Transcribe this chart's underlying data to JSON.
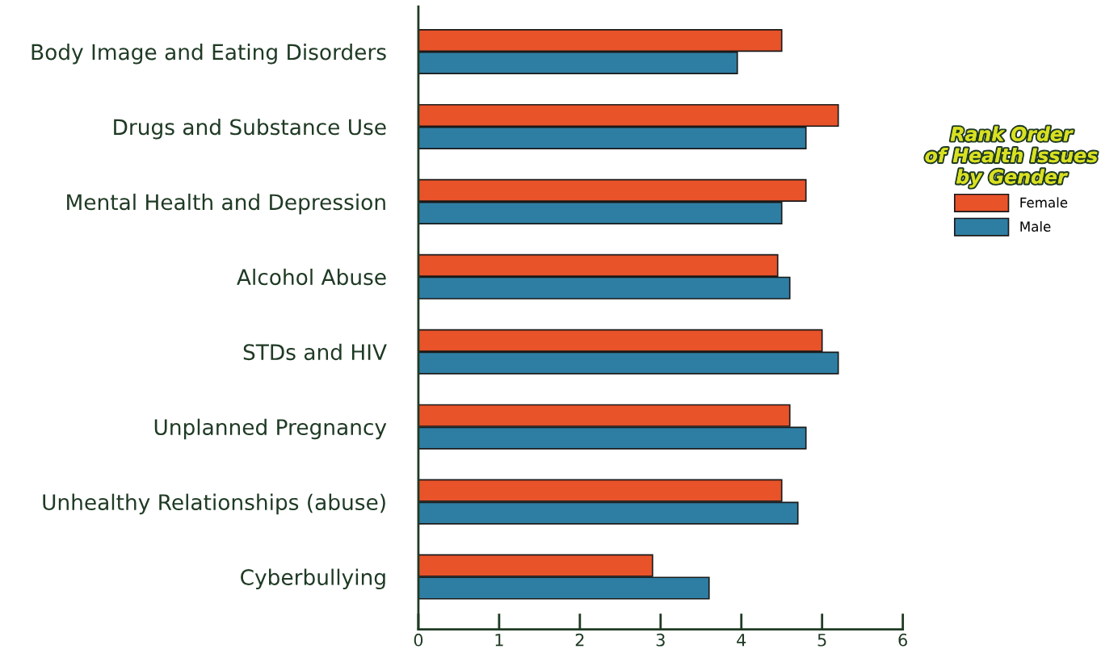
{
  "chart_data": {
    "type": "bar",
    "orientation": "horizontal",
    "categories": [
      "Body Image and Eating Disorders",
      "Drugs and Substance Use",
      "Mental Health and Depression",
      "Alcohol Abuse",
      "STDs and HIV",
      "Unplanned Pregnancy",
      "Unhealthy Relationships (abuse)",
      "Cyberbullying"
    ],
    "series": [
      {
        "name": "Female",
        "color": "#e8532a",
        "values": [
          4.5,
          5.2,
          4.8,
          4.45,
          5.0,
          4.6,
          4.5,
          2.9
        ]
      },
      {
        "name": "Male",
        "color": "#2e7ea3",
        "values": [
          3.95,
          4.8,
          4.5,
          4.6,
          5.2,
          4.8,
          4.7,
          3.6
        ]
      }
    ],
    "xlim": [
      0,
      6
    ],
    "xticks": [
      0,
      1,
      2,
      3,
      4,
      5,
      6
    ],
    "legend": "right",
    "legend_title": "Rank Order\nof Health Issues\nby Gender",
    "grid": false
  }
}
